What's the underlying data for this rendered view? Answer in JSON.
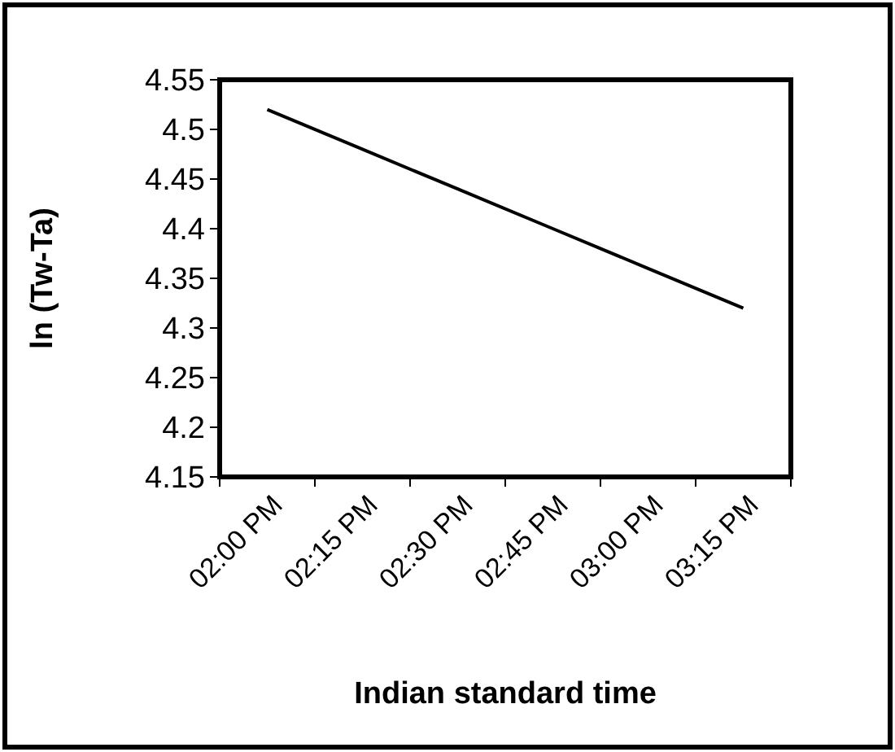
{
  "chart_data": {
    "type": "line",
    "xlabel": "Indian standard time",
    "ylabel": "ln (Tw-Ta)",
    "categories": [
      "02:00 PM",
      "02:15 PM",
      "02:30 PM",
      "02:45 PM",
      "03:00 PM",
      "03:15 PM"
    ],
    "series": [
      {
        "color": "#000000",
        "values": [
          4.52,
          4.48,
          4.44,
          4.4,
          4.36,
          4.32
        ]
      }
    ],
    "ylim": [
      4.15,
      4.55
    ],
    "yticks": [
      4.15,
      4.2,
      4.25,
      4.3,
      4.35,
      4.4,
      4.45,
      4.5,
      4.55
    ],
    "grid": false,
    "marker": "none",
    "line_style": "solid"
  }
}
